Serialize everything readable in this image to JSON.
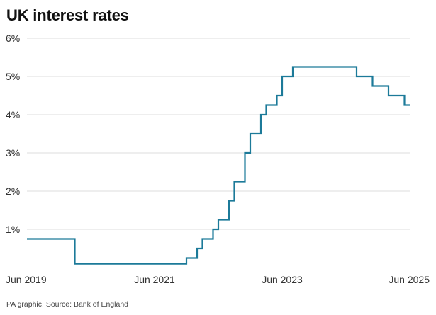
{
  "title": "UK interest rates",
  "source": "PA graphic. Source: Bank of England",
  "colors": {
    "line": "#1c7a99",
    "grid": "#dedede",
    "text": "#333333"
  },
  "chart_data": {
    "type": "line",
    "title": "UK interest rates",
    "xlabel": "",
    "ylabel": "",
    "grid": true,
    "legend": "none",
    "xlim": [
      "2019-06",
      "2025-06"
    ],
    "ylim": [
      0,
      6
    ],
    "y_ticks": [
      {
        "value": 1,
        "label": "1%"
      },
      {
        "value": 2,
        "label": "2%"
      },
      {
        "value": 3,
        "label": "3%"
      },
      {
        "value": 4,
        "label": "4%"
      },
      {
        "value": 5,
        "label": "5%"
      },
      {
        "value": 6,
        "label": "6%"
      }
    ],
    "x_ticks": [
      {
        "value": "2019-06",
        "label": "Jun 2019"
      },
      {
        "value": "2021-06",
        "label": "Jun 2021"
      },
      {
        "value": "2023-06",
        "label": "Jun 2023"
      },
      {
        "value": "2025-06",
        "label": "Jun 2025"
      }
    ],
    "series": [
      {
        "points": [
          [
            "2019-06",
            0.75
          ],
          [
            "2020-03",
            0.75
          ],
          [
            "2020-03",
            0.1
          ],
          [
            "2021-12",
            0.1
          ],
          [
            "2021-12",
            0.25
          ],
          [
            "2022-02",
            0.25
          ],
          [
            "2022-02",
            0.5
          ],
          [
            "2022-03",
            0.5
          ],
          [
            "2022-03",
            0.75
          ],
          [
            "2022-05",
            0.75
          ],
          [
            "2022-05",
            1.0
          ],
          [
            "2022-06",
            1.0
          ],
          [
            "2022-06",
            1.25
          ],
          [
            "2022-08",
            1.25
          ],
          [
            "2022-08",
            1.75
          ],
          [
            "2022-09",
            1.75
          ],
          [
            "2022-09",
            2.25
          ],
          [
            "2022-11",
            2.25
          ],
          [
            "2022-11",
            3.0
          ],
          [
            "2022-12",
            3.0
          ],
          [
            "2022-12",
            3.5
          ],
          [
            "2023-02",
            3.5
          ],
          [
            "2023-02",
            4.0
          ],
          [
            "2023-03",
            4.0
          ],
          [
            "2023-03",
            4.25
          ],
          [
            "2023-05",
            4.25
          ],
          [
            "2023-05",
            4.5
          ],
          [
            "2023-06",
            4.5
          ],
          [
            "2023-06",
            5.0
          ],
          [
            "2023-08",
            5.0
          ],
          [
            "2023-08",
            5.25
          ],
          [
            "2024-08",
            5.25
          ],
          [
            "2024-08",
            5.0
          ],
          [
            "2024-11",
            5.0
          ],
          [
            "2024-11",
            4.75
          ],
          [
            "2025-02",
            4.75
          ],
          [
            "2025-02",
            4.5
          ],
          [
            "2025-05",
            4.5
          ],
          [
            "2025-05",
            4.25
          ],
          [
            "2025-06",
            4.25
          ]
        ]
      }
    ]
  }
}
